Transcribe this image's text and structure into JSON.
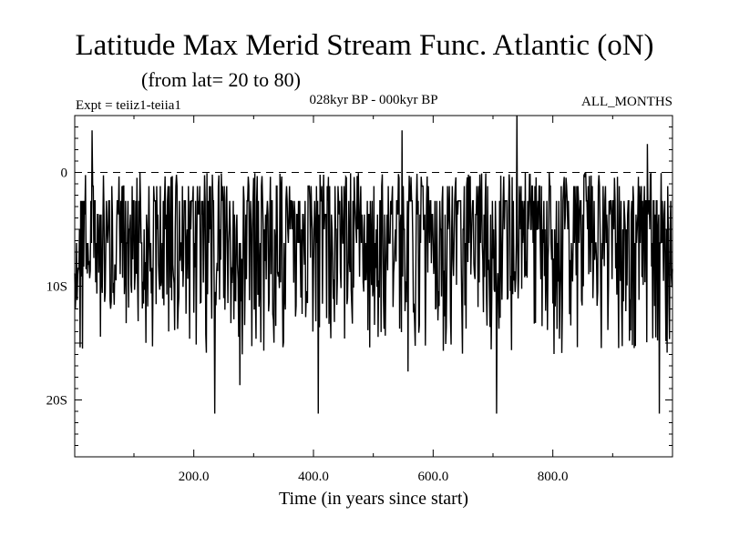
{
  "title": "Latitude Max Merid Stream Func. Atlantic (oN)",
  "subtitle": "(from lat= 20 to 80)",
  "labels": {
    "experiment": "Expt = teiiz1-teiia1",
    "period": "028kyr BP - 000kyr BP",
    "months": "ALL_MONTHS"
  },
  "chart_data": {
    "type": "line",
    "title": "Latitude Max Merid Stream Func. Atlantic (oN)",
    "subtitle": "(from lat= 20 to 80)",
    "xlabel": "Time (in years since start)",
    "ylabel": "",
    "xlim": [
      1,
      1000
    ],
    "ylim": [
      -25,
      5
    ],
    "x_ticks": [
      200,
      400,
      600,
      800
    ],
    "x_tick_labels": [
      "200.0",
      "400.0",
      "600.0",
      "800.0"
    ],
    "y_ticks": [
      0,
      -10,
      -20
    ],
    "y_tick_labels": [
      "0",
      "10S",
      "20S"
    ],
    "reference_line": {
      "y": 0,
      "style": "dashed"
    },
    "baseline": -2.5,
    "series": [
      {
        "x_start": 1,
        "x_step": 1,
        "n": 1000,
        "notable_values": [
          {
            "x": 30,
            "y": 3.7
          },
          {
            "x": 235,
            "y": -21.2
          },
          {
            "x": 277,
            "y": -18.7
          },
          {
            "x": 408,
            "y": -21.2
          },
          {
            "x": 548,
            "y": 3.7
          },
          {
            "x": 558,
            "y": -17.5
          },
          {
            "x": 706,
            "y": -21.2
          },
          {
            "x": 740,
            "y": 5
          },
          {
            "x": 958,
            "y": 2.5
          },
          {
            "x": 978,
            "y": -21.2
          }
        ]
      }
    ],
    "grid": false,
    "legend": "none"
  }
}
